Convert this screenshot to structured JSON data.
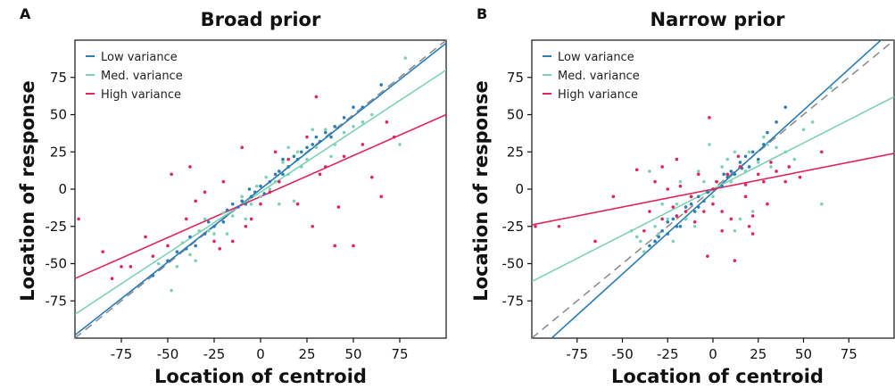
{
  "figure": {
    "colors": {
      "low": "#2a7db8",
      "med": "#7fd1b3",
      "high": "#e2245a",
      "identity": "#888888"
    }
  },
  "chart_data": [
    {
      "panel_letter": "A",
      "type": "scatter",
      "title": "Broad prior",
      "xlabel": "Location of centroid",
      "ylabel": "Location of response",
      "xlim": [
        -100,
        100
      ],
      "ylim": [
        -100,
        100
      ],
      "xticks": [
        -75,
        -50,
        -25,
        0,
        25,
        50,
        75
      ],
      "yticks": [
        -75,
        -50,
        -25,
        0,
        25,
        50,
        75
      ],
      "legend_position": "top-left",
      "identity_line": true,
      "series": [
        {
          "name": "Low variance",
          "key": "low",
          "color": "#2a7db8",
          "fit": {
            "slope": 0.98,
            "intercept": 0
          },
          "points": [
            [
              -58,
              -58
            ],
            [
              -50,
              -48
            ],
            [
              -45,
              -42
            ],
            [
              -40,
              -40
            ],
            [
              -35,
              -38
            ],
            [
              -30,
              -30
            ],
            [
              -25,
              -25
            ],
            [
              -20,
              -22
            ],
            [
              -18,
              -14
            ],
            [
              -15,
              -10
            ],
            [
              -12,
              -12
            ],
            [
              -10,
              -8
            ],
            [
              -8,
              -10
            ],
            [
              -5,
              -5
            ],
            [
              -3,
              -2
            ],
            [
              0,
              2
            ],
            [
              2,
              -3
            ],
            [
              5,
              5
            ],
            [
              8,
              10
            ],
            [
              10,
              12
            ],
            [
              12,
              10
            ],
            [
              15,
              15
            ],
            [
              18,
              22
            ],
            [
              20,
              20
            ],
            [
              22,
              25
            ],
            [
              25,
              28
            ],
            [
              28,
              30
            ],
            [
              30,
              35
            ],
            [
              32,
              32
            ],
            [
              35,
              38
            ],
            [
              38,
              35
            ],
            [
              40,
              42
            ],
            [
              45,
              48
            ],
            [
              50,
              55
            ],
            [
              55,
              55
            ],
            [
              65,
              70
            ],
            [
              -28,
              -22
            ],
            [
              -38,
              -32
            ],
            [
              12,
              20
            ],
            [
              -6,
              0
            ]
          ]
        },
        {
          "name": "Med. variance",
          "key": "med",
          "color": "#7fd1b3",
          "fit": {
            "slope": 0.82,
            "intercept": -2
          },
          "points": [
            [
              -55,
              -50
            ],
            [
              -48,
              -68
            ],
            [
              -42,
              -36
            ],
            [
              -38,
              -44
            ],
            [
              -30,
              -20
            ],
            [
              -28,
              -28
            ],
            [
              -25,
              -30
            ],
            [
              -20,
              -16
            ],
            [
              -15,
              -18
            ],
            [
              -10,
              -5
            ],
            [
              -5,
              -10
            ],
            [
              -2,
              2
            ],
            [
              0,
              -5
            ],
            [
              3,
              8
            ],
            [
              5,
              0
            ],
            [
              8,
              5
            ],
            [
              12,
              18
            ],
            [
              15,
              10
            ],
            [
              20,
              25
            ],
            [
              22,
              15
            ],
            [
              25,
              20
            ],
            [
              30,
              28
            ],
            [
              35,
              40
            ],
            [
              40,
              30
            ],
            [
              45,
              38
            ],
            [
              50,
              42
            ],
            [
              55,
              45
            ],
            [
              60,
              50
            ],
            [
              75,
              30
            ],
            [
              78,
              88
            ],
            [
              -45,
              -52
            ],
            [
              -35,
              -48
            ],
            [
              -18,
              -30
            ],
            [
              10,
              -10
            ],
            [
              28,
              40
            ],
            [
              38,
              22
            ],
            [
              18,
              -8
            ],
            [
              -8,
              -20
            ],
            [
              15,
              28
            ],
            [
              -33,
              -28
            ]
          ]
        },
        {
          "name": "High variance",
          "key": "high",
          "color": "#e2245a",
          "fit": {
            "slope": 0.55,
            "intercept": -5
          },
          "points": [
            [
              -98,
              -20
            ],
            [
              -85,
              -42
            ],
            [
              -80,
              -60
            ],
            [
              -70,
              -52
            ],
            [
              -62,
              -32
            ],
            [
              -58,
              -45
            ],
            [
              -50,
              -38
            ],
            [
              -48,
              10
            ],
            [
              -40,
              -20
            ],
            [
              -38,
              15
            ],
            [
              -35,
              -8
            ],
            [
              -30,
              -2
            ],
            [
              -25,
              -35
            ],
            [
              -22,
              -40
            ],
            [
              -20,
              5
            ],
            [
              -15,
              -35
            ],
            [
              -10,
              28
            ],
            [
              -8,
              -25
            ],
            [
              -5,
              -20
            ],
            [
              0,
              -10
            ],
            [
              5,
              -2
            ],
            [
              10,
              5
            ],
            [
              15,
              20
            ],
            [
              20,
              -10
            ],
            [
              25,
              35
            ],
            [
              28,
              -25
            ],
            [
              30,
              62
            ],
            [
              32,
              10
            ],
            [
              35,
              15
            ],
            [
              40,
              -38
            ],
            [
              42,
              -12
            ],
            [
              45,
              22
            ],
            [
              50,
              -38
            ],
            [
              55,
              30
            ],
            [
              60,
              8
            ],
            [
              65,
              -5
            ],
            [
              68,
              45
            ],
            [
              72,
              35
            ],
            [
              -75,
              -52
            ],
            [
              8,
              25
            ]
          ]
        }
      ]
    },
    {
      "panel_letter": "B",
      "type": "scatter",
      "title": "Narrow prior",
      "xlabel": "Location of centroid",
      "ylabel": "Location of response",
      "xlim": [
        -100,
        100
      ],
      "ylim": [
        -100,
        100
      ],
      "xticks": [
        -75,
        -50,
        -25,
        0,
        25,
        50,
        75
      ],
      "yticks": [
        -75,
        -50,
        -25,
        0,
        25,
        50,
        75
      ],
      "legend_position": "top-left",
      "identity_line": true,
      "series": [
        {
          "name": "Low variance",
          "key": "low",
          "color": "#2a7db8",
          "fit": {
            "slope": 1.1,
            "intercept": -2
          },
          "points": [
            [
              -35,
              -38
            ],
            [
              -30,
              -32
            ],
            [
              -28,
              -28
            ],
            [
              -25,
              -22
            ],
            [
              -22,
              -20
            ],
            [
              -20,
              -18
            ],
            [
              -18,
              -25
            ],
            [
              -15,
              -12
            ],
            [
              -12,
              -10
            ],
            [
              -10,
              -15
            ],
            [
              -8,
              -5
            ],
            [
              -5,
              -8
            ],
            [
              -3,
              -2
            ],
            [
              0,
              0
            ],
            [
              2,
              5
            ],
            [
              5,
              2
            ],
            [
              8,
              8
            ],
            [
              10,
              12
            ],
            [
              12,
              10
            ],
            [
              15,
              18
            ],
            [
              18,
              22
            ],
            [
              20,
              15
            ],
            [
              22,
              25
            ],
            [
              25,
              20
            ],
            [
              28,
              30
            ],
            [
              35,
              45
            ],
            [
              40,
              55
            ],
            [
              -15,
              -20
            ],
            [
              -25,
              -30
            ],
            [
              -8,
              -12
            ],
            [
              6,
              10
            ],
            [
              16,
              14
            ],
            [
              -20,
              -25
            ],
            [
              -32,
              -35
            ],
            [
              30,
              38
            ]
          ]
        },
        {
          "name": "Med. variance",
          "key": "med",
          "color": "#7fd1b3",
          "fit": {
            "slope": 0.62,
            "intercept": 0
          },
          "points": [
            [
              -45,
              -28
            ],
            [
              -42,
              -32
            ],
            [
              -40,
              -35
            ],
            [
              -35,
              12
            ],
            [
              -32,
              -25
            ],
            [
              -30,
              -30
            ],
            [
              -28,
              -10
            ],
            [
              -25,
              -20
            ],
            [
              -22,
              -35
            ],
            [
              -20,
              -10
            ],
            [
              -18,
              5
            ],
            [
              -15,
              -20
            ],
            [
              -12,
              -5
            ],
            [
              -10,
              -25
            ],
            [
              -8,
              12
            ],
            [
              -5,
              5
            ],
            [
              -2,
              30
            ],
            [
              0,
              -5
            ],
            [
              5,
              15
            ],
            [
              8,
              20
            ],
            [
              10,
              5
            ],
            [
              12,
              25
            ],
            [
              15,
              -20
            ],
            [
              18,
              12
            ],
            [
              20,
              25
            ],
            [
              22,
              -15
            ],
            [
              25,
              18
            ],
            [
              28,
              35
            ],
            [
              32,
              15
            ],
            [
              35,
              28
            ],
            [
              40,
              25
            ],
            [
              45,
              20
            ],
            [
              50,
              40
            ],
            [
              55,
              45
            ],
            [
              60,
              -10
            ],
            [
              65,
              68
            ],
            [
              -38,
              -42
            ],
            [
              12,
              -28
            ],
            [
              30,
              30
            ]
          ]
        },
        {
          "name": "High variance",
          "key": "high",
          "color": "#e2245a",
          "fit": {
            "slope": 0.24,
            "intercept": 0
          },
          "points": [
            [
              -98,
              -25
            ],
            [
              -85,
              -25
            ],
            [
              -65,
              -35
            ],
            [
              -55,
              -5
            ],
            [
              -42,
              13
            ],
            [
              -38,
              -28
            ],
            [
              -35,
              -15
            ],
            [
              -32,
              5
            ],
            [
              -28,
              -20
            ],
            [
              -25,
              0
            ],
            [
              -22,
              -12
            ],
            [
              -20,
              -18
            ],
            [
              -15,
              -15
            ],
            [
              -12,
              -5
            ],
            [
              -10,
              -22
            ],
            [
              -5,
              -15
            ],
            [
              -3,
              -45
            ],
            [
              0,
              -10
            ],
            [
              2,
              5
            ],
            [
              5,
              -15
            ],
            [
              8,
              10
            ],
            [
              10,
              -20
            ],
            [
              12,
              -48
            ],
            [
              14,
              22
            ],
            [
              15,
              15
            ],
            [
              18,
              -5
            ],
            [
              20,
              -25
            ],
            [
              22,
              -18
            ],
            [
              25,
              10
            ],
            [
              28,
              5
            ],
            [
              30,
              -10
            ],
            [
              32,
              18
            ],
            [
              35,
              12
            ],
            [
              40,
              5
            ],
            [
              42,
              15
            ],
            [
              48,
              8
            ],
            [
              -8,
              10
            ],
            [
              -18,
              2
            ],
            [
              60,
              25
            ],
            [
              -2,
              48
            ],
            [
              18,
              3
            ],
            [
              22,
              -30
            ],
            [
              -28,
              15
            ],
            [
              -20,
              20
            ],
            [
              0,
              0
            ],
            [
              5,
              -28
            ]
          ]
        }
      ]
    }
  ]
}
